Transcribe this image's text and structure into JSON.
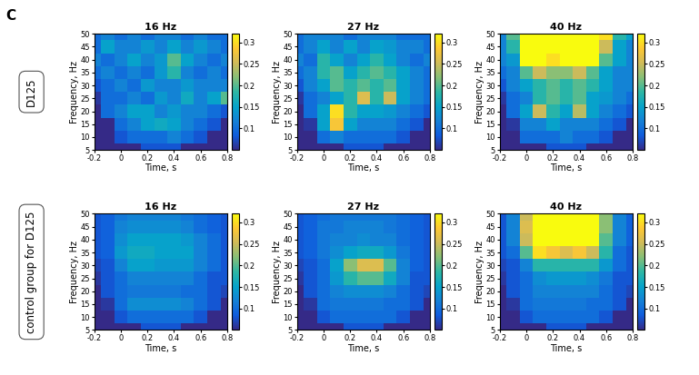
{
  "panel_label": "C",
  "row_labels": [
    "D125",
    "control group for D125"
  ],
  "chart_data": [
    {
      "type": "heatmap",
      "title": "16 Hz",
      "x_label": "Time, s",
      "y_label": "Frequency, Hz",
      "x": [
        -0.2,
        -0.1,
        0,
        0.1,
        0.2,
        0.3,
        0.4,
        0.5,
        0.6,
        0.7,
        0.8
      ],
      "y": [
        5,
        10,
        15,
        20,
        25,
        30,
        35,
        40,
        45,
        50
      ],
      "cells": [
        [
          0.05,
          0.05,
          0.05,
          0.05,
          0.08,
          0.08,
          0.08,
          0.05,
          0.05,
          0.05,
          0.05
        ],
        [
          0.05,
          0.05,
          0.08,
          0.1,
          0.1,
          0.1,
          0.12,
          0.1,
          0.08,
          0.05,
          0.05
        ],
        [
          0.05,
          0.05,
          0.1,
          0.12,
          0.15,
          0.16,
          0.15,
          0.12,
          0.1,
          0.08,
          0.05
        ],
        [
          0.05,
          0.1,
          0.12,
          0.15,
          0.15,
          0.12,
          0.14,
          0.12,
          0.12,
          0.1,
          0.08
        ],
        [
          0.06,
          0.1,
          0.1,
          0.12,
          0.1,
          0.14,
          0.12,
          0.16,
          0.12,
          0.15,
          0.2
        ],
        [
          0.08,
          0.1,
          0.12,
          0.1,
          0.14,
          0.12,
          0.12,
          0.14,
          0.12,
          0.12,
          0.12
        ],
        [
          0.1,
          0.12,
          0.1,
          0.12,
          0.1,
          0.14,
          0.18,
          0.12,
          0.1,
          0.12,
          0.1
        ],
        [
          0.12,
          0.1,
          0.12,
          0.15,
          0.12,
          0.14,
          0.2,
          0.15,
          0.12,
          0.1,
          0.12
        ],
        [
          0.1,
          0.15,
          0.12,
          0.12,
          0.14,
          0.12,
          0.15,
          0.12,
          0.14,
          0.12,
          0.1
        ],
        [
          0.1,
          0.12,
          0.1,
          0.12,
          0.1,
          0.12,
          0.12,
          0.1,
          0.12,
          0.1,
          0.1
        ]
      ],
      "xlim": [
        -0.2,
        0.8
      ],
      "ylim": [
        5,
        50
      ],
      "xticks": [
        -0.2,
        0,
        0.2,
        0.4,
        0.6,
        0.8
      ],
      "yticks": [
        5,
        10,
        15,
        20,
        25,
        30,
        35,
        40,
        45,
        50
      ],
      "colorbar_range": [
        0.05,
        0.32
      ],
      "colorbar_ticks": [
        0.1,
        0.15,
        0.2,
        0.25,
        0.3
      ]
    },
    {
      "type": "heatmap",
      "title": "27 Hz",
      "x_label": "Time, s",
      "y_label": "Frequency, Hz",
      "x": [
        -0.2,
        -0.1,
        0,
        0.1,
        0.2,
        0.3,
        0.4,
        0.5,
        0.6,
        0.7,
        0.8
      ],
      "y": [
        5,
        10,
        15,
        20,
        25,
        30,
        35,
        40,
        45,
        50
      ],
      "cells": [
        [
          0.05,
          0.05,
          0.05,
          0.05,
          0.08,
          0.08,
          0.08,
          0.05,
          0.05,
          0.05,
          0.05
        ],
        [
          0.05,
          0.05,
          0.1,
          0.12,
          0.1,
          0.1,
          0.1,
          0.1,
          0.08,
          0.05,
          0.05
        ],
        [
          0.05,
          0.06,
          0.15,
          0.28,
          0.15,
          0.12,
          0.12,
          0.12,
          0.1,
          0.08,
          0.05
        ],
        [
          0.05,
          0.1,
          0.15,
          0.3,
          0.18,
          0.15,
          0.15,
          0.14,
          0.12,
          0.1,
          0.08
        ],
        [
          0.06,
          0.1,
          0.12,
          0.15,
          0.18,
          0.26,
          0.18,
          0.25,
          0.15,
          0.12,
          0.1
        ],
        [
          0.08,
          0.12,
          0.15,
          0.2,
          0.18,
          0.2,
          0.18,
          0.2,
          0.15,
          0.12,
          0.1
        ],
        [
          0.1,
          0.12,
          0.18,
          0.2,
          0.15,
          0.18,
          0.2,
          0.18,
          0.15,
          0.12,
          0.1
        ],
        [
          0.12,
          0.1,
          0.18,
          0.15,
          0.12,
          0.15,
          0.18,
          0.15,
          0.12,
          0.1,
          0.12
        ],
        [
          0.1,
          0.12,
          0.15,
          0.12,
          0.15,
          0.12,
          0.15,
          0.14,
          0.12,
          0.12,
          0.1
        ],
        [
          0.1,
          0.12,
          0.12,
          0.12,
          0.1,
          0.12,
          0.12,
          0.12,
          0.1,
          0.1,
          0.1
        ]
      ],
      "xlim": [
        -0.2,
        0.8
      ],
      "ylim": [
        5,
        50
      ],
      "xticks": [
        -0.2,
        0,
        0.2,
        0.4,
        0.6,
        0.8
      ],
      "yticks": [
        5,
        10,
        15,
        20,
        25,
        30,
        35,
        40,
        45,
        50
      ],
      "colorbar_range": [
        0.05,
        0.32
      ],
      "colorbar_ticks": [
        0.1,
        0.15,
        0.2,
        0.25,
        0.3
      ]
    },
    {
      "type": "heatmap",
      "title": "40 Hz",
      "x_label": "Time, s",
      "y_label": "Frequency, Hz",
      "x": [
        -0.2,
        -0.1,
        0,
        0.1,
        0.2,
        0.3,
        0.4,
        0.5,
        0.6,
        0.7,
        0.8
      ],
      "y": [
        5,
        10,
        15,
        20,
        25,
        30,
        35,
        40,
        45,
        50
      ],
      "cells": [
        [
          0.05,
          0.05,
          0.05,
          0.05,
          0.08,
          0.08,
          0.08,
          0.05,
          0.05,
          0.05,
          0.05
        ],
        [
          0.05,
          0.05,
          0.1,
          0.1,
          0.1,
          0.12,
          0.1,
          0.1,
          0.08,
          0.05,
          0.05
        ],
        [
          0.05,
          0.06,
          0.12,
          0.12,
          0.15,
          0.12,
          0.12,
          0.12,
          0.1,
          0.08,
          0.05
        ],
        [
          0.05,
          0.1,
          0.15,
          0.25,
          0.18,
          0.15,
          0.24,
          0.15,
          0.12,
          0.1,
          0.08
        ],
        [
          0.06,
          0.1,
          0.12,
          0.18,
          0.2,
          0.18,
          0.2,
          0.15,
          0.14,
          0.12,
          0.1
        ],
        [
          0.08,
          0.12,
          0.15,
          0.18,
          0.2,
          0.18,
          0.2,
          0.18,
          0.15,
          0.12,
          0.12
        ],
        [
          0.1,
          0.12,
          0.2,
          0.25,
          0.22,
          0.22,
          0.25,
          0.2,
          0.15,
          0.12,
          0.12
        ],
        [
          0.12,
          0.14,
          0.33,
          0.33,
          0.3,
          0.33,
          0.33,
          0.32,
          0.2,
          0.15,
          0.12
        ],
        [
          0.12,
          0.18,
          0.33,
          0.33,
          0.33,
          0.33,
          0.33,
          0.33,
          0.25,
          0.15,
          0.12
        ],
        [
          0.12,
          0.2,
          0.33,
          0.33,
          0.33,
          0.33,
          0.33,
          0.33,
          0.3,
          0.18,
          0.15
        ]
      ],
      "xlim": [
        -0.2,
        0.8
      ],
      "ylim": [
        5,
        50
      ],
      "xticks": [
        -0.2,
        0,
        0.2,
        0.4,
        0.6,
        0.8
      ],
      "yticks": [
        5,
        10,
        15,
        20,
        25,
        30,
        35,
        40,
        45,
        50
      ],
      "colorbar_range": [
        0.05,
        0.32
      ],
      "colorbar_ticks": [
        0.1,
        0.15,
        0.2,
        0.25,
        0.3
      ]
    },
    {
      "type": "heatmap",
      "title": "16 Hz",
      "x_label": "Time, s",
      "y_label": "Frequency, Hz",
      "x": [
        -0.2,
        -0.1,
        0,
        0.1,
        0.2,
        0.3,
        0.4,
        0.5,
        0.6,
        0.7,
        0.8
      ],
      "y": [
        5,
        10,
        15,
        20,
        25,
        30,
        35,
        40,
        45,
        50
      ],
      "cells": [
        [
          0.05,
          0.05,
          0.05,
          0.05,
          0.08,
          0.08,
          0.08,
          0.05,
          0.05,
          0.05,
          0.05
        ],
        [
          0.05,
          0.05,
          0.08,
          0.1,
          0.1,
          0.1,
          0.1,
          0.1,
          0.08,
          0.05,
          0.05
        ],
        [
          0.05,
          0.06,
          0.1,
          0.13,
          0.13,
          0.13,
          0.13,
          0.12,
          0.1,
          0.08,
          0.05
        ],
        [
          0.05,
          0.08,
          0.1,
          0.11,
          0.11,
          0.11,
          0.11,
          0.1,
          0.1,
          0.08,
          0.07
        ],
        [
          0.06,
          0.08,
          0.1,
          0.12,
          0.12,
          0.12,
          0.12,
          0.12,
          0.1,
          0.08,
          0.08
        ],
        [
          0.07,
          0.08,
          0.12,
          0.15,
          0.15,
          0.14,
          0.14,
          0.14,
          0.12,
          0.1,
          0.08
        ],
        [
          0.08,
          0.09,
          0.14,
          0.16,
          0.16,
          0.15,
          0.15,
          0.15,
          0.12,
          0.1,
          0.08
        ],
        [
          0.08,
          0.09,
          0.13,
          0.15,
          0.15,
          0.15,
          0.15,
          0.14,
          0.12,
          0.1,
          0.08
        ],
        [
          0.08,
          0.09,
          0.12,
          0.13,
          0.13,
          0.13,
          0.13,
          0.12,
          0.1,
          0.09,
          0.08
        ],
        [
          0.08,
          0.09,
          0.11,
          0.12,
          0.12,
          0.12,
          0.12,
          0.11,
          0.1,
          0.09,
          0.08
        ]
      ],
      "xlim": [
        -0.2,
        0.8
      ],
      "ylim": [
        5,
        50
      ],
      "xticks": [
        -0.2,
        0,
        0.2,
        0.4,
        0.6,
        0.8
      ],
      "yticks": [
        5,
        10,
        15,
        20,
        25,
        30,
        35,
        40,
        45,
        50
      ],
      "colorbar_range": [
        0.05,
        0.32
      ],
      "colorbar_ticks": [
        0.1,
        0.15,
        0.2,
        0.25,
        0.3
      ]
    },
    {
      "type": "heatmap",
      "title": "27 Hz",
      "x_label": "Time, s",
      "y_label": "Frequency, Hz",
      "x": [
        -0.2,
        -0.1,
        0,
        0.1,
        0.2,
        0.3,
        0.4,
        0.5,
        0.6,
        0.7,
        0.8
      ],
      "y": [
        5,
        10,
        15,
        20,
        25,
        30,
        35,
        40,
        45,
        50
      ],
      "cells": [
        [
          0.05,
          0.05,
          0.05,
          0.05,
          0.08,
          0.08,
          0.08,
          0.05,
          0.05,
          0.05,
          0.05
        ],
        [
          0.05,
          0.05,
          0.08,
          0.1,
          0.1,
          0.1,
          0.1,
          0.1,
          0.08,
          0.05,
          0.05
        ],
        [
          0.05,
          0.06,
          0.1,
          0.11,
          0.11,
          0.11,
          0.11,
          0.1,
          0.1,
          0.08,
          0.05
        ],
        [
          0.05,
          0.08,
          0.1,
          0.12,
          0.13,
          0.13,
          0.13,
          0.12,
          0.1,
          0.08,
          0.07
        ],
        [
          0.06,
          0.08,
          0.1,
          0.14,
          0.18,
          0.2,
          0.2,
          0.16,
          0.12,
          0.08,
          0.08
        ],
        [
          0.07,
          0.08,
          0.1,
          0.15,
          0.22,
          0.26,
          0.26,
          0.2,
          0.12,
          0.09,
          0.08
        ],
        [
          0.08,
          0.09,
          0.11,
          0.13,
          0.15,
          0.16,
          0.16,
          0.14,
          0.11,
          0.09,
          0.08
        ],
        [
          0.08,
          0.09,
          0.11,
          0.12,
          0.12,
          0.13,
          0.12,
          0.12,
          0.1,
          0.09,
          0.08
        ],
        [
          0.08,
          0.09,
          0.11,
          0.11,
          0.12,
          0.12,
          0.12,
          0.11,
          0.1,
          0.09,
          0.08
        ],
        [
          0.08,
          0.09,
          0.1,
          0.11,
          0.11,
          0.11,
          0.11,
          0.11,
          0.1,
          0.09,
          0.08
        ]
      ],
      "xlim": [
        -0.2,
        0.8
      ],
      "ylim": [
        5,
        50
      ],
      "xticks": [
        -0.2,
        0,
        0.2,
        0.4,
        0.6,
        0.8
      ],
      "yticks": [
        5,
        10,
        15,
        20,
        25,
        30,
        35,
        40,
        45,
        50
      ],
      "colorbar_range": [
        0.05,
        0.32
      ],
      "colorbar_ticks": [
        0.1,
        0.15,
        0.2,
        0.25,
        0.3
      ]
    },
    {
      "type": "heatmap",
      "title": "40 Hz",
      "x_label": "Time, s",
      "y_label": "Frequency, Hz",
      "x": [
        -0.2,
        -0.1,
        0,
        0.1,
        0.2,
        0.3,
        0.4,
        0.5,
        0.6,
        0.7,
        0.8
      ],
      "y": [
        5,
        10,
        15,
        20,
        25,
        30,
        35,
        40,
        45,
        50
      ],
      "cells": [
        [
          0.05,
          0.05,
          0.05,
          0.05,
          0.08,
          0.08,
          0.08,
          0.05,
          0.05,
          0.05,
          0.05
        ],
        [
          0.05,
          0.05,
          0.08,
          0.1,
          0.1,
          0.1,
          0.1,
          0.1,
          0.08,
          0.05,
          0.05
        ],
        [
          0.05,
          0.06,
          0.1,
          0.11,
          0.11,
          0.11,
          0.11,
          0.1,
          0.1,
          0.08,
          0.05
        ],
        [
          0.05,
          0.08,
          0.1,
          0.12,
          0.12,
          0.12,
          0.12,
          0.12,
          0.1,
          0.08,
          0.07
        ],
        [
          0.06,
          0.08,
          0.1,
          0.13,
          0.14,
          0.14,
          0.14,
          0.13,
          0.11,
          0.08,
          0.08
        ],
        [
          0.07,
          0.08,
          0.12,
          0.18,
          0.18,
          0.18,
          0.18,
          0.18,
          0.14,
          0.1,
          0.08
        ],
        [
          0.08,
          0.1,
          0.2,
          0.3,
          0.28,
          0.26,
          0.28,
          0.25,
          0.18,
          0.1,
          0.08
        ],
        [
          0.08,
          0.12,
          0.25,
          0.33,
          0.33,
          0.33,
          0.33,
          0.33,
          0.2,
          0.12,
          0.09
        ],
        [
          0.08,
          0.12,
          0.26,
          0.33,
          0.33,
          0.33,
          0.33,
          0.33,
          0.22,
          0.12,
          0.09
        ],
        [
          0.08,
          0.12,
          0.25,
          0.33,
          0.33,
          0.33,
          0.33,
          0.32,
          0.22,
          0.12,
          0.09
        ]
      ],
      "xlim": [
        -0.2,
        0.8
      ],
      "ylim": [
        5,
        50
      ],
      "xticks": [
        -0.2,
        0,
        0.2,
        0.4,
        0.6,
        0.8
      ],
      "yticks": [
        5,
        10,
        15,
        20,
        25,
        30,
        35,
        40,
        45,
        50
      ],
      "colorbar_range": [
        0.05,
        0.32
      ],
      "colorbar_ticks": [
        0.1,
        0.15,
        0.2,
        0.25,
        0.3
      ]
    }
  ]
}
